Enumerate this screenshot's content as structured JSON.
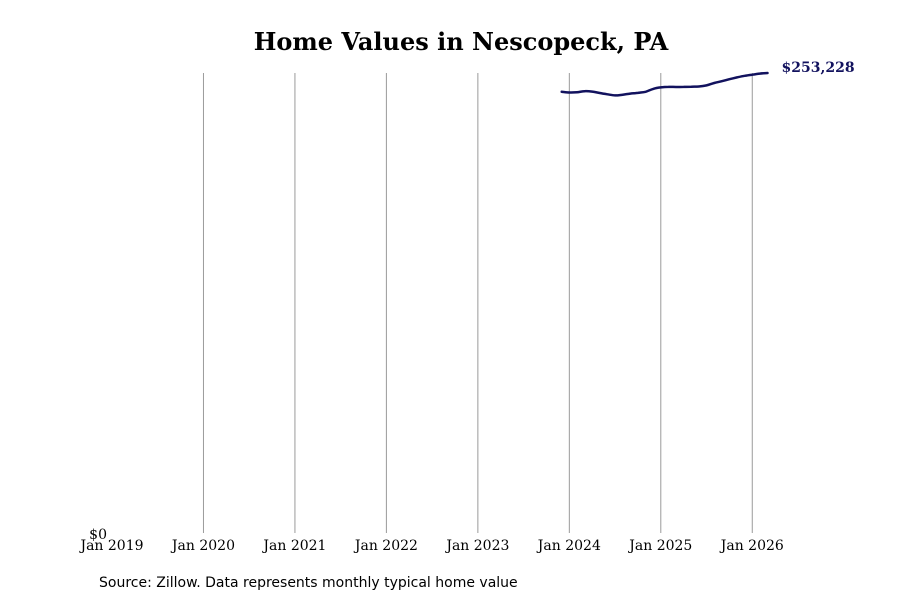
{
  "chart_data": {
    "type": "line",
    "title": "Home Values in Nescopeck, PA",
    "xlabel": "",
    "ylabel": "",
    "x_ticks": [
      "Jan 2019",
      "Jan 2020",
      "Jan 2021",
      "Jan 2022",
      "Jan 2023",
      "Jan 2024",
      "Jan 2025",
      "Jan 2026"
    ],
    "y_ticks": [
      "$0"
    ],
    "ylim": [
      0,
      253228
    ],
    "xlim": [
      "2019-01",
      "2026-07"
    ],
    "grid": "vertical",
    "series": [
      {
        "color": "#12125e",
        "points": [
          {
            "x": "2023-12",
            "y": 242900
          },
          {
            "x": "2024-01",
            "y": 242500
          },
          {
            "x": "2024-02",
            "y": 242600
          },
          {
            "x": "2024-03",
            "y": 243200
          },
          {
            "x": "2024-04",
            "y": 243000
          },
          {
            "x": "2024-05",
            "y": 242200
          },
          {
            "x": "2024-06",
            "y": 241500
          },
          {
            "x": "2024-07",
            "y": 240900
          },
          {
            "x": "2024-08",
            "y": 241300
          },
          {
            "x": "2024-09",
            "y": 241900
          },
          {
            "x": "2024-10",
            "y": 242300
          },
          {
            "x": "2024-11",
            "y": 242900
          },
          {
            "x": "2024-12",
            "y": 244500
          },
          {
            "x": "2025-01",
            "y": 245300
          },
          {
            "x": "2025-02",
            "y": 245600
          },
          {
            "x": "2025-03",
            "y": 245500
          },
          {
            "x": "2025-04",
            "y": 245600
          },
          {
            "x": "2025-05",
            "y": 245700
          },
          {
            "x": "2025-06",
            "y": 245800
          },
          {
            "x": "2025-07",
            "y": 246400
          },
          {
            "x": "2025-08",
            "y": 247700
          },
          {
            "x": "2025-09",
            "y": 248700
          },
          {
            "x": "2025-10",
            "y": 249800
          },
          {
            "x": "2025-11",
            "y": 250800
          },
          {
            "x": "2025-12",
            "y": 251700
          },
          {
            "x": "2026-01",
            "y": 252300
          },
          {
            "x": "2026-02",
            "y": 252900
          },
          {
            "x": "2026-03",
            "y": 253228
          }
        ]
      }
    ],
    "end_label": "$253,228",
    "source": "Source: Zillow. Data represents monthly typical home value"
  }
}
